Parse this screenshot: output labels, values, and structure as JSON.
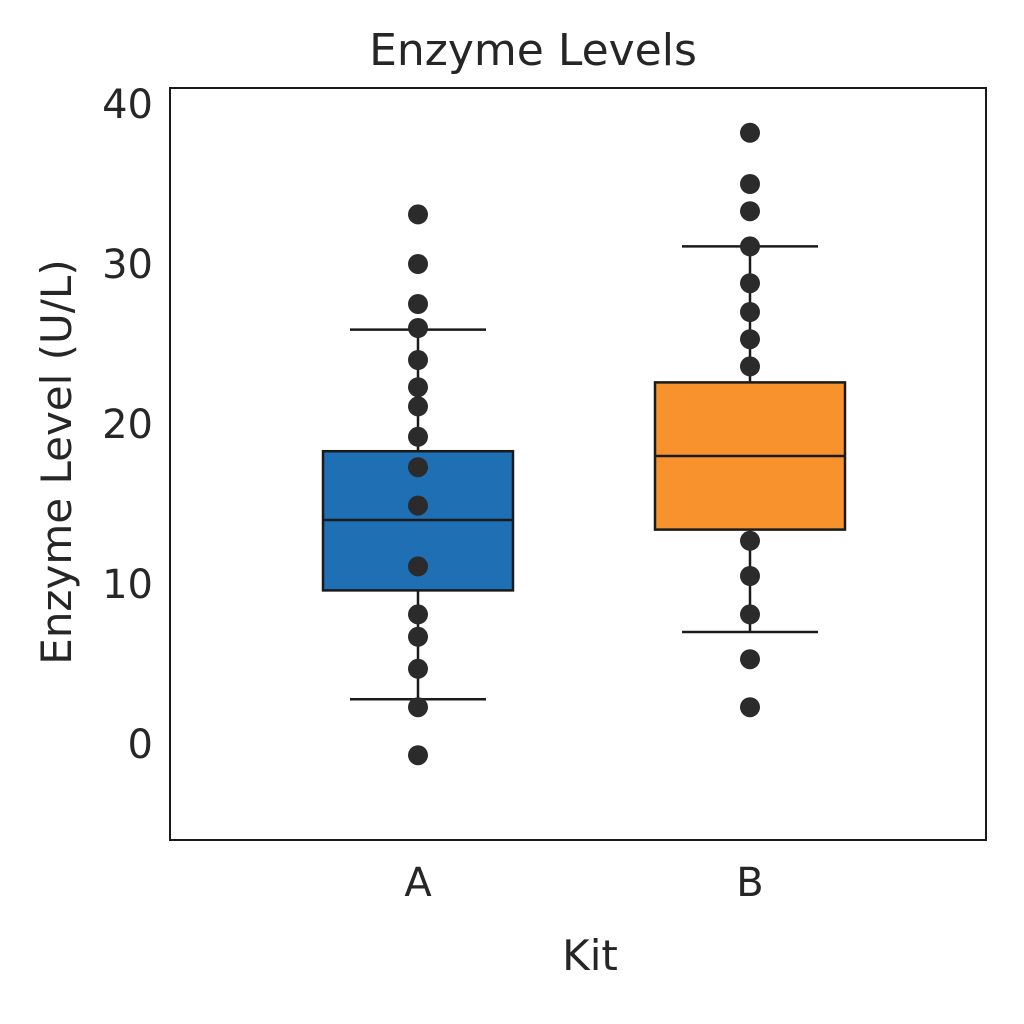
{
  "chart_data": {
    "type": "box",
    "title": "Enzyme Levels",
    "xlabel": "Kit",
    "ylabel": "Enzyme Level (U/L)",
    "ylim": [
      -6,
      41
    ],
    "yticks": [
      0,
      10,
      20,
      30,
      40
    ],
    "grid": false,
    "categories": [
      "A",
      "B"
    ],
    "series": [
      {
        "category": "A",
        "color": "#1f6fb4",
        "box": {
          "whisker_low": 2.8,
          "q1": 9.6,
          "median": 14.0,
          "q3": 18.3,
          "whisker_high": 25.9
        },
        "points": [
          -0.7,
          2.3,
          4.7,
          6.7,
          8.1,
          11.1,
          14.9,
          17.3,
          19.2,
          21.1,
          22.3,
          24.0,
          26.0,
          27.5,
          30.0,
          33.1
        ]
      },
      {
        "category": "B",
        "color": "#f7922d",
        "box": {
          "whisker_low": 7.0,
          "q1": 13.4,
          "median": 18.0,
          "q3": 22.6,
          "whisker_high": 31.1
        },
        "points": [
          2.3,
          5.3,
          8.1,
          10.5,
          12.7,
          23.6,
          25.3,
          27.0,
          28.8,
          31.1,
          33.3,
          35.0,
          38.2
        ]
      }
    ]
  },
  "colors": {
    "text": "#262626",
    "frame": "#1a1a1a",
    "points": "#2b2b2b"
  }
}
